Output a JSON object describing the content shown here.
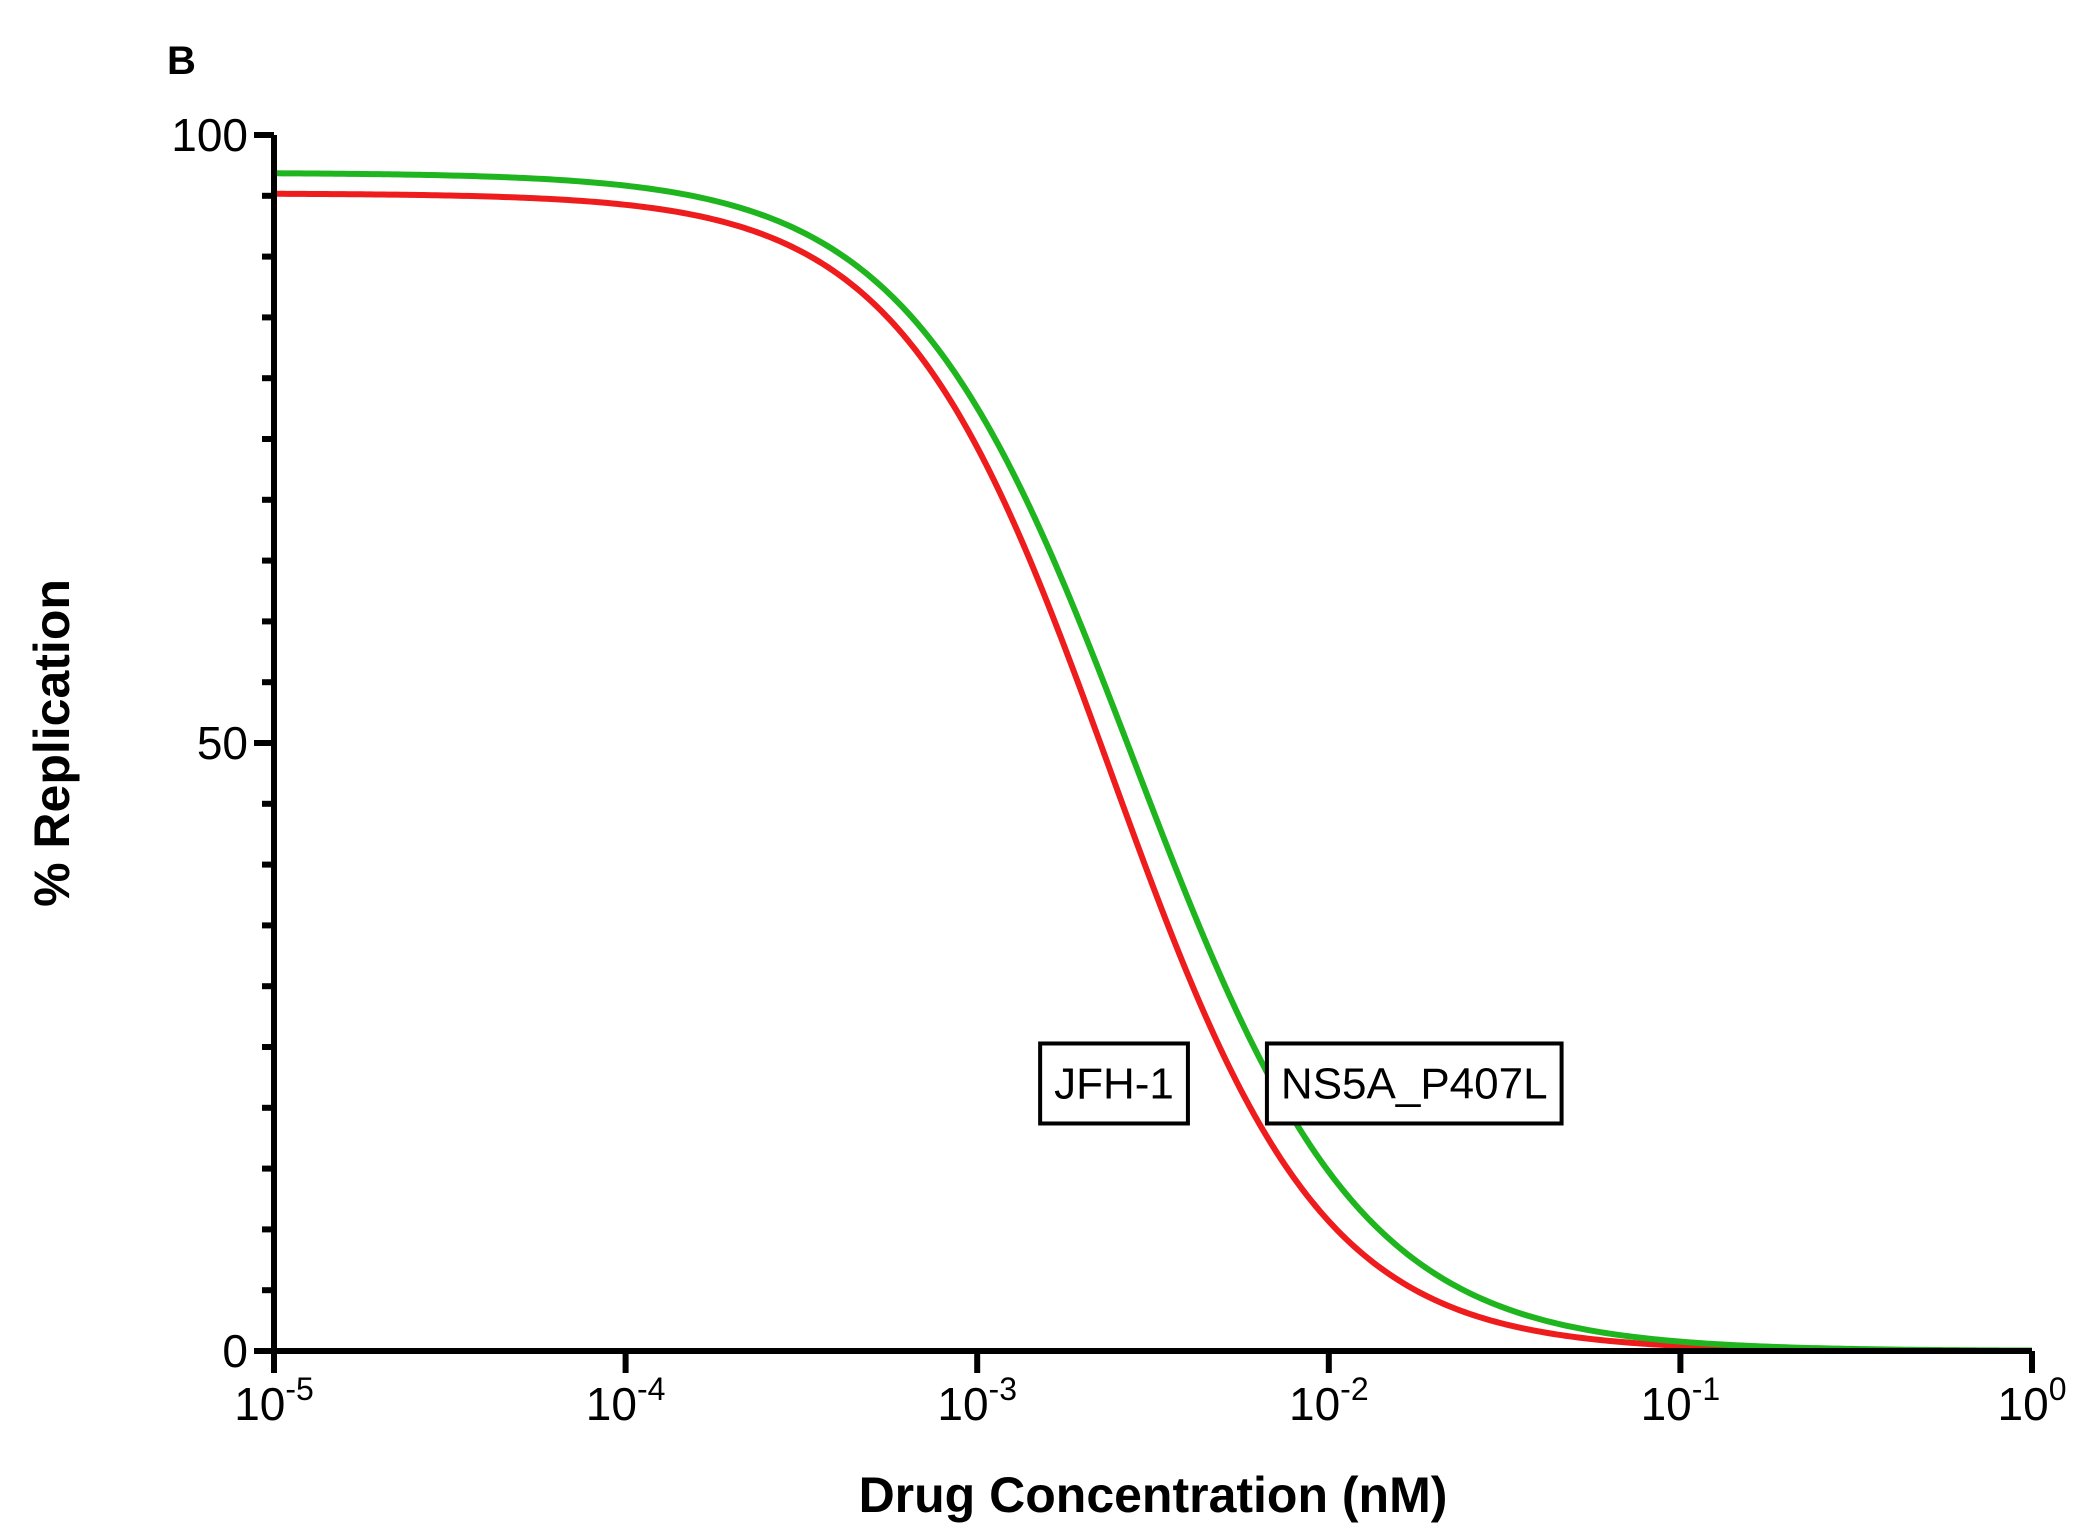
{
  "chart_data": {
    "type": "line",
    "panel_label": "B",
    "xlabel": "Drug Concentration (nM)",
    "ylabel": "% Replication",
    "x_scale": "log10",
    "xlim": [
      1e-05,
      1
    ],
    "ylim": [
      0,
      100
    ],
    "x_ticks": [
      {
        "base": "10",
        "exp": "-5",
        "value": 1e-05
      },
      {
        "base": "10",
        "exp": "-4",
        "value": 0.0001
      },
      {
        "base": "10",
        "exp": "-3",
        "value": 0.001
      },
      {
        "base": "10",
        "exp": "-2",
        "value": 0.01
      },
      {
        "base": "10",
        "exp": "-1",
        "value": 0.1
      },
      {
        "base": "10",
        "exp": "0",
        "value": 1
      }
    ],
    "y_ticks": [
      {
        "label": "0",
        "value": 0
      },
      {
        "label": "50",
        "value": 50
      },
      {
        "label": "100",
        "value": 100
      }
    ],
    "y_minor_step": 5,
    "grid": false,
    "series": [
      {
        "name": "JFH-1",
        "color": "#ee1c1c",
        "model": "dose_response",
        "top": 95.2,
        "bottom": 0,
        "ic50": 0.0024,
        "hill": 1.45,
        "label_x": 0.00245,
        "label_y": 22
      },
      {
        "name": "NS5A_P407L",
        "color": "#1fb51f",
        "model": "dose_response",
        "top": 96.9,
        "bottom": 0,
        "ic50": 0.0028,
        "hill": 1.35,
        "label_x": 0.0175,
        "label_y": 22
      }
    ]
  }
}
